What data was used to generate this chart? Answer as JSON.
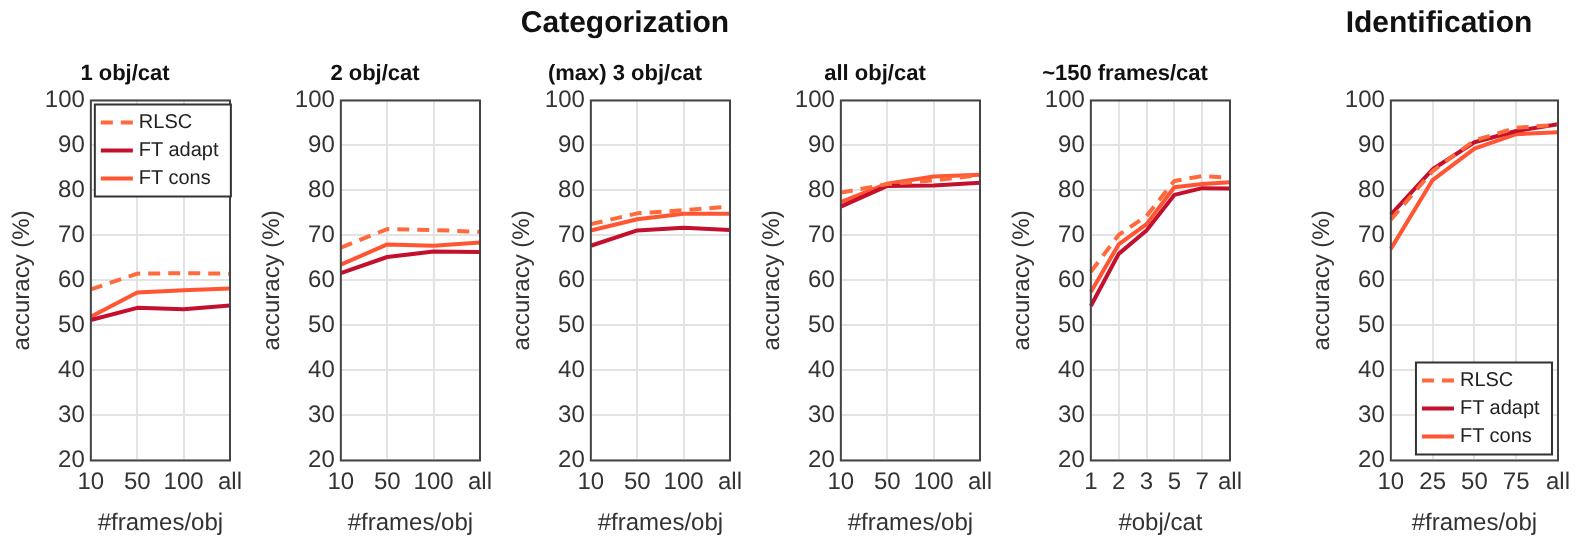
{
  "chart_data": [
    {
      "type": "line",
      "subtitle": "1 obj/cat",
      "categories": [
        "10",
        "50",
        "100",
        "all"
      ],
      "xlabel": "#frames/obj",
      "ylabel": "accuracy (%)",
      "ylim": [
        20,
        100
      ],
      "yticks": [
        20,
        30,
        40,
        50,
        60,
        70,
        80,
        90,
        100
      ],
      "grid": true,
      "legend": "top left",
      "series": [
        {
          "name": "RLSC",
          "color": "#ff6a3d",
          "line_style": "dashed",
          "values": [
            58,
            61.5,
            61.6,
            61.5
          ]
        },
        {
          "name": "FT adapt",
          "color": "#c4102c",
          "line_style": "solid",
          "values": [
            51.2,
            53.9,
            53.6,
            54.4
          ]
        },
        {
          "name": "FT cons",
          "color": "#ff5533",
          "line_style": "solid",
          "values": [
            51.9,
            57.3,
            57.8,
            58.2
          ]
        }
      ]
    },
    {
      "type": "line",
      "subtitle": "2 obj/cat",
      "categories": [
        "10",
        "50",
        "100",
        "all"
      ],
      "xlabel": "#frames/obj",
      "ylabel": "accuracy (%)",
      "ylim": [
        20,
        100
      ],
      "yticks": [
        20,
        30,
        40,
        50,
        60,
        70,
        80,
        90,
        100
      ],
      "grid": true,
      "series": [
        {
          "color": "#ff6a3d",
          "line_style": "dashed",
          "values": [
            67.3,
            71.4,
            71.2,
            70.8
          ]
        },
        {
          "color": "#c4102c",
          "line_style": "solid",
          "values": [
            61.6,
            65.2,
            66.4,
            66.3
          ]
        },
        {
          "color": "#ff5533",
          "line_style": "solid",
          "values": [
            63.5,
            68,
            67.7,
            68.4
          ]
        }
      ]
    },
    {
      "type": "line",
      "title": "Categorization",
      "subtitle": "(max) 3 obj/cat",
      "categories": [
        "10",
        "50",
        "100",
        "all"
      ],
      "xlabel": "#frames/obj",
      "ylabel": "accuracy (%)",
      "ylim": [
        20,
        100
      ],
      "yticks": [
        20,
        30,
        40,
        50,
        60,
        70,
        80,
        90,
        100
      ],
      "grid": true,
      "series": [
        {
          "color": "#ff6a3d",
          "line_style": "dashed",
          "values": [
            72.5,
            74.9,
            75.6,
            76.4
          ]
        },
        {
          "color": "#c4102c",
          "line_style": "solid",
          "values": [
            67.7,
            71.1,
            71.7,
            71.2
          ]
        },
        {
          "color": "#ff5533",
          "line_style": "solid",
          "values": [
            71.1,
            73.6,
            74.8,
            74.8
          ]
        }
      ]
    },
    {
      "type": "line",
      "subtitle": "all obj/cat",
      "categories": [
        "10",
        "50",
        "100",
        "all"
      ],
      "xlabel": "#frames/obj",
      "ylabel": "accuracy (%)",
      "ylim": [
        20,
        100
      ],
      "yticks": [
        20,
        30,
        40,
        50,
        60,
        70,
        80,
        90,
        100
      ],
      "grid": true,
      "series": [
        {
          "color": "#ff6a3d",
          "line_style": "dashed",
          "values": [
            79.5,
            81.4,
            82.2,
            83.4
          ]
        },
        {
          "color": "#c4102c",
          "line_style": "solid",
          "values": [
            76.4,
            81,
            81.1,
            81.7
          ]
        },
        {
          "color": "#ff5533",
          "line_style": "solid",
          "values": [
            77.4,
            81.5,
            83.1,
            83.5
          ]
        }
      ]
    },
    {
      "type": "line",
      "subtitle": "~150 frames/cat",
      "categories": [
        "1",
        "2",
        "3",
        "5",
        "7",
        "all"
      ],
      "xlabel": "#obj/cat",
      "ylabel": "accuracy (%)",
      "ylim": [
        20,
        100
      ],
      "yticks": [
        20,
        30,
        40,
        50,
        60,
        70,
        80,
        90,
        100
      ],
      "grid": true,
      "series": [
        {
          "color": "#ff6a3d",
          "line_style": "dashed",
          "values": [
            61.9,
            70.1,
            74.3,
            82.1,
            83.2,
            82.8
          ]
        },
        {
          "color": "#c4102c",
          "line_style": "solid",
          "values": [
            54.3,
            65.9,
            71.1,
            79,
            80.5,
            80.4
          ]
        },
        {
          "color": "#ff5533",
          "line_style": "solid",
          "values": [
            57.4,
            68,
            72.5,
            80.7,
            81.4,
            81.8
          ]
        }
      ]
    },
    {
      "type": "line",
      "title": "Identification",
      "categories": [
        "10",
        "25",
        "50",
        "75",
        "all"
      ],
      "xlabel": "#frames/obj",
      "ylabel": "accuracy (%)",
      "ylim": [
        20,
        100
      ],
      "yticks": [
        20,
        30,
        40,
        50,
        60,
        70,
        80,
        90,
        100
      ],
      "grid": true,
      "legend": "bottom right",
      "series": [
        {
          "name": "RLSC",
          "color": "#ff6a3d",
          "line_style": "dashed",
          "values": [
            73.5,
            84.3,
            91.1,
            93.9,
            94.6
          ]
        },
        {
          "name": "FT adapt",
          "color": "#c4102c",
          "line_style": "solid",
          "values": [
            74.6,
            84.7,
            90.7,
            93.2,
            94.7
          ]
        },
        {
          "name": "FT cons",
          "color": "#ff5533",
          "line_style": "solid",
          "values": [
            67,
            82.3,
            89.3,
            92.5,
            92.9
          ]
        }
      ]
    }
  ]
}
